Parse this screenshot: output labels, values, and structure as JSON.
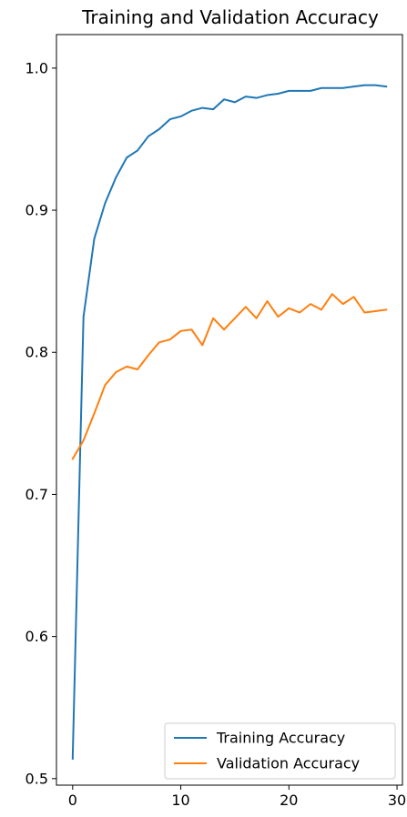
{
  "chart_data": {
    "type": "line",
    "title": "Training and Validation Accuracy",
    "xlabel": "",
    "ylabel": "",
    "xlim": [
      -1.5,
      30.5
    ],
    "ylim": [
      0.4954,
      1.0236
    ],
    "xticks": [
      0,
      10,
      20,
      30
    ],
    "yticks": [
      0.5,
      0.6,
      0.7,
      0.8,
      0.9,
      1.0
    ],
    "ytick_labels": [
      "0.5",
      "0.6",
      "0.7",
      "0.8",
      "0.9",
      "1.0"
    ],
    "grid": false,
    "legend_position": "bottom-right",
    "x": [
      0,
      1,
      2,
      3,
      4,
      5,
      6,
      7,
      8,
      9,
      10,
      11,
      12,
      13,
      14,
      15,
      16,
      17,
      18,
      19,
      20,
      21,
      22,
      23,
      24,
      25,
      26,
      27,
      28,
      29
    ],
    "series": [
      {
        "name": "Training Accuracy",
        "color": "#1f77b4",
        "values": [
          0.514,
          0.825,
          0.88,
          0.905,
          0.923,
          0.937,
          0.942,
          0.952,
          0.957,
          0.964,
          0.966,
          0.97,
          0.972,
          0.971,
          0.978,
          0.976,
          0.98,
          0.979,
          0.981,
          0.982,
          0.984,
          0.984,
          0.984,
          0.986,
          0.986,
          0.986,
          0.987,
          0.988,
          0.988,
          0.987
        ]
      },
      {
        "name": "Validation Accuracy",
        "color": "#ff7f0e",
        "values": [
          0.725,
          0.738,
          0.757,
          0.777,
          0.786,
          0.79,
          0.788,
          0.798,
          0.807,
          0.809,
          0.815,
          0.816,
          0.805,
          0.824,
          0.816,
          0.824,
          0.832,
          0.824,
          0.836,
          0.825,
          0.831,
          0.828,
          0.834,
          0.83,
          0.841,
          0.834,
          0.839,
          0.828,
          0.829,
          0.83
        ]
      }
    ]
  }
}
